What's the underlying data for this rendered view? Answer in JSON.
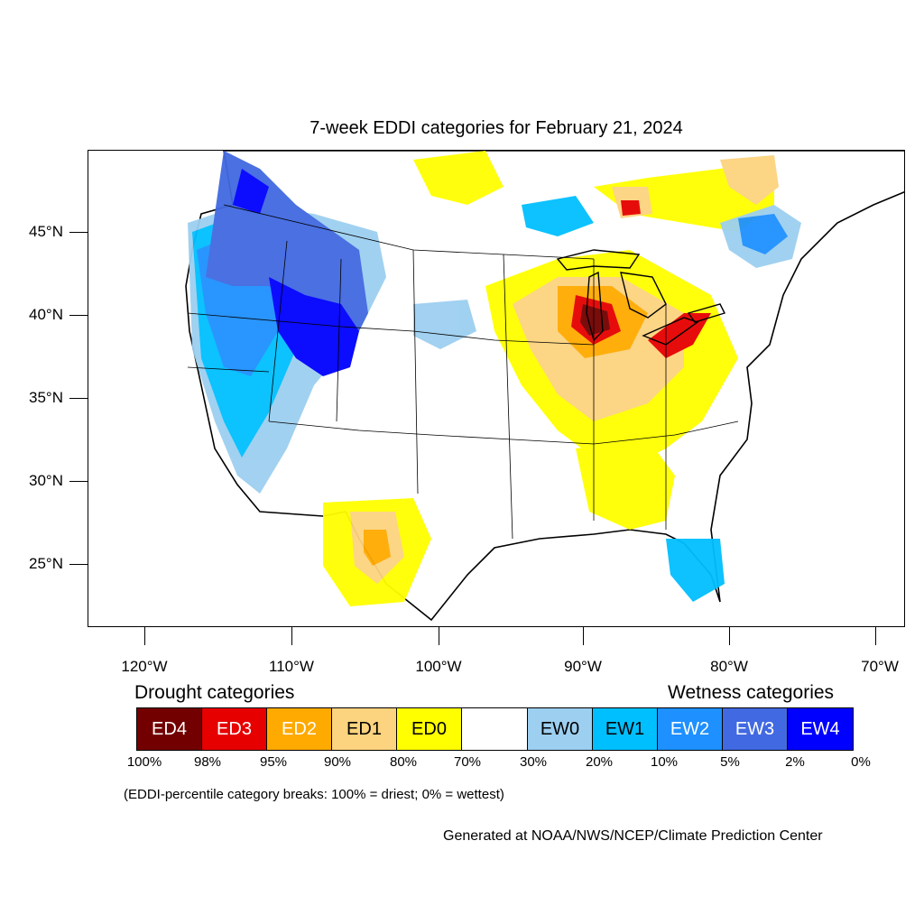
{
  "title": "7-week EDDI categories for February 21, 2024",
  "axes": {
    "latitudes": [
      "45°N",
      "40°N",
      "35°N",
      "30°N",
      "25°N"
    ],
    "longitudes": [
      "120°W",
      "110°W",
      "100°W",
      "90°W",
      "80°W",
      "70°W"
    ]
  },
  "legend": {
    "drought_heading": "Drought categories",
    "wetness_heading": "Wetness categories",
    "categories": [
      {
        "label": "ED4",
        "color": "#730000",
        "text_color": "#ffffff"
      },
      {
        "label": "ED3",
        "color": "#e60000",
        "text_color": "#ffffff"
      },
      {
        "label": "ED2",
        "color": "#ffaa00",
        "text_color": "#ffffff"
      },
      {
        "label": "ED1",
        "color": "#fcd37f",
        "text_color": "#000000"
      },
      {
        "label": "ED0",
        "color": "#ffff00",
        "text_color": "#000000"
      },
      {
        "label": "",
        "color": "#ffffff",
        "text_color": "#000000"
      },
      {
        "label": "EW0",
        "color": "#9dcff0",
        "text_color": "#000000"
      },
      {
        "label": "EW1",
        "color": "#00bfff",
        "text_color": "#000000"
      },
      {
        "label": "EW2",
        "color": "#1e90ff",
        "text_color": "#ffffff"
      },
      {
        "label": "EW3",
        "color": "#4169e1",
        "text_color": "#ffffff"
      },
      {
        "label": "EW4",
        "color": "#0000ff",
        "text_color": "#ffffff"
      }
    ],
    "percentiles": [
      "100%",
      "98%",
      "95%",
      "90%",
      "80%",
      "70%",
      "30%",
      "20%",
      "10%",
      "5%",
      "2%",
      "0%"
    ]
  },
  "note": "(EDDI-percentile category breaks: 100% = driest; 0% = wettest)",
  "credit": "Generated at NOAA/NWS/NCEP/Climate Prediction Center"
}
